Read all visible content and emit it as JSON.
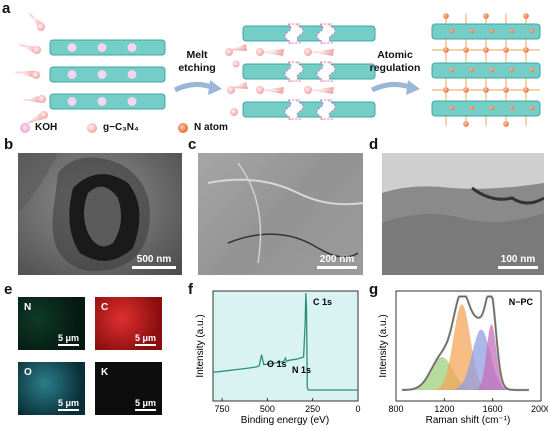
{
  "panels": {
    "a": "a",
    "b": "b",
    "c": "c",
    "d": "d",
    "e": "e",
    "f": "f",
    "g": "g"
  },
  "schematic": {
    "step1": [
      "Melt",
      "etching"
    ],
    "step2": [
      "Atomic",
      "regulation"
    ],
    "legend": [
      {
        "label": "KOH",
        "color": "#f2b8e0"
      },
      {
        "label": "g−C₃N₄",
        "color": "#f7c6c4"
      },
      {
        "label": "N atom",
        "color": "#f28a5a"
      }
    ],
    "colors": {
      "layer": "#74cdc6",
      "layer_edge": "#3fa8a0",
      "dot": "#f7d5ee",
      "arrow": "#9bb6d6",
      "bond": "#f2c48a"
    }
  },
  "micrographs": {
    "b_scale": "500 nm",
    "c_scale": "200 nm",
    "d_scale": "100 nm"
  },
  "edx": [
    {
      "element": "N",
      "scale": "5 μm",
      "color": "#2a9a72"
    },
    {
      "element": "C",
      "scale": "5 μm",
      "color": "#d62020"
    },
    {
      "element": "O",
      "scale": "5 μm",
      "color": "#2ab6c6"
    },
    {
      "element": "K",
      "scale": "5 μm",
      "color": "#222222"
    }
  ],
  "chart_data": [
    {
      "id": "f",
      "type": "line",
      "xlabel": "Binding energy (eV)",
      "ylabel": "Intensity (a.u.)",
      "xlim": [
        800,
        0
      ],
      "xticks": [
        750,
        500,
        250,
        0
      ],
      "annotations": [
        "O 1s",
        "N 1s",
        "C 1s"
      ],
      "x": [
        800,
        750,
        700,
        650,
        600,
        560,
        545,
        532,
        520,
        480,
        440,
        410,
        400,
        395,
        380,
        340,
        300,
        292,
        288,
        284,
        280,
        275,
        260,
        200,
        100,
        0
      ],
      "y": [
        0.26,
        0.27,
        0.28,
        0.29,
        0.3,
        0.31,
        0.32,
        0.42,
        0.33,
        0.34,
        0.35,
        0.36,
        0.39,
        0.36,
        0.37,
        0.38,
        0.4,
        0.7,
        0.98,
        0.85,
        0.12,
        0.1,
        0.1,
        0.1,
        0.1,
        0.1
      ],
      "background": "#d9f3f3",
      "line_color": "#2f8f7c"
    },
    {
      "id": "g",
      "type": "line",
      "title": "N−PC",
      "xlabel": "Raman shift (cm⁻¹)",
      "ylabel": "Intensity (a.u.)",
      "xlim": [
        800,
        2000
      ],
      "xticks": [
        800,
        1200,
        1600,
        2000
      ],
      "series": [
        {
          "color": "#9ccf7c",
          "center": 1180,
          "amp": 0.3,
          "width": 90
        },
        {
          "color": "#f3a65a",
          "center": 1345,
          "amp": 0.78,
          "width": 70
        },
        {
          "color": "#8f9fe0",
          "center": 1505,
          "amp": 0.55,
          "width": 75
        },
        {
          "color": "#c76fb8",
          "center": 1590,
          "amp": 0.6,
          "width": 40
        }
      ],
      "fit_color": "#d23a2a",
      "data_color": "#38b8b8"
    }
  ]
}
